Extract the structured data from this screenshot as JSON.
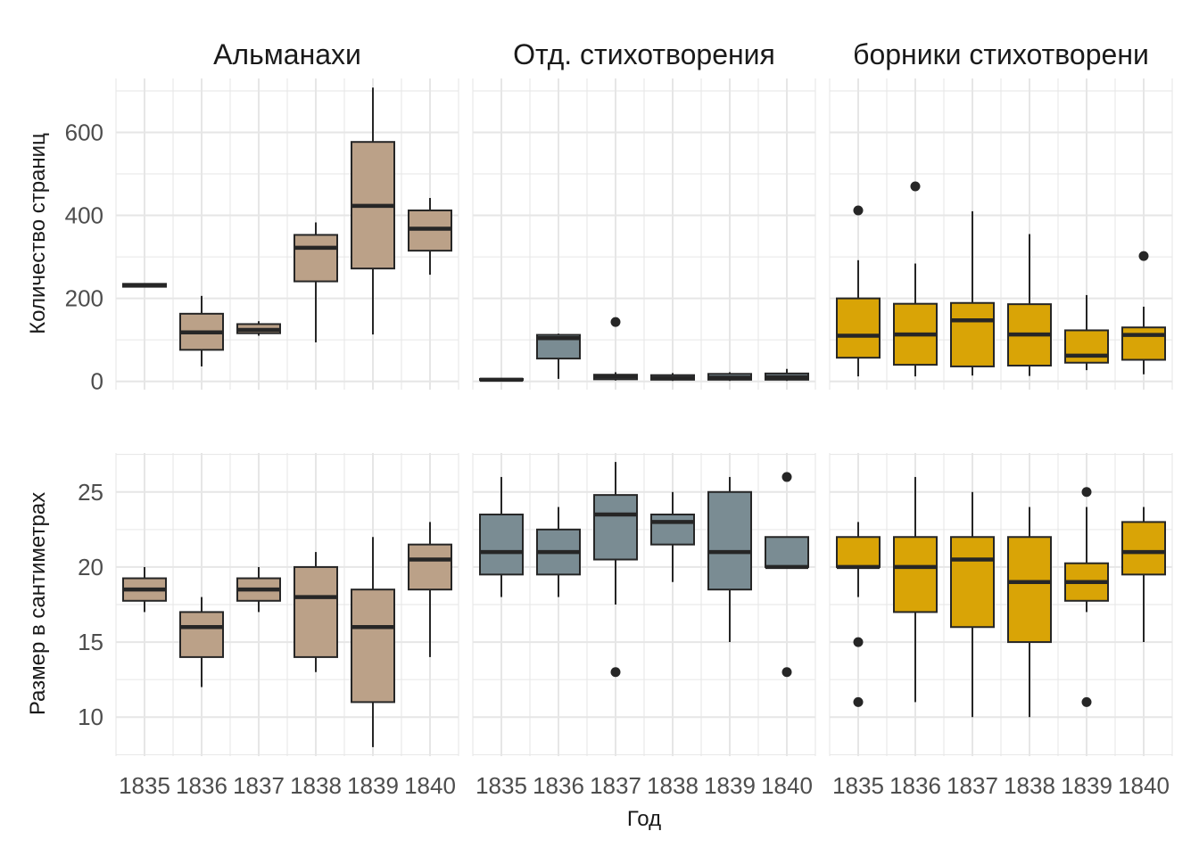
{
  "chart_data": {
    "type": "boxplot",
    "xlabel": "Год",
    "x_categories": [
      "1835",
      "1836",
      "1837",
      "1838",
      "1839",
      "1840"
    ],
    "facet_columns": [
      {
        "title": "Альманахи",
        "color": "#BBA188"
      },
      {
        "title": "Отд. стихотворения",
        "color": "#7A8C93"
      },
      {
        "title": "борники стихотворени",
        "color": "#D9A406"
      }
    ],
    "rows": [
      {
        "ylabel": "Количество страниц",
        "ylim": [
          -20,
          730
        ],
        "y_ticks": [
          0,
          200,
          400,
          600
        ],
        "panels": [
          [
            {
              "year": "1835",
              "min": 228,
              "q1": 228,
              "median": 232,
              "q3": 235,
              "max": 235,
              "outliers": []
            },
            {
              "year": "1836",
              "min": 36,
              "q1": 76,
              "median": 118,
              "q3": 163,
              "max": 206,
              "outliers": []
            },
            {
              "year": "1837",
              "min": 110,
              "q1": 116,
              "median": 124,
              "q3": 138,
              "max": 145,
              "outliers": []
            },
            {
              "year": "1838",
              "min": 94,
              "q1": 241,
              "median": 322,
              "q3": 353,
              "max": 383,
              "outliers": []
            },
            {
              "year": "1839",
              "min": 113,
              "q1": 272,
              "median": 423,
              "q3": 577,
              "max": 708,
              "outliers": []
            },
            {
              "year": "1840",
              "min": 257,
              "q1": 315,
              "median": 368,
              "q3": 412,
              "max": 442,
              "outliers": []
            }
          ],
          [
            {
              "year": "1835",
              "min": 2,
              "q1": 3,
              "median": 4,
              "q3": 6,
              "max": 7,
              "outliers": []
            },
            {
              "year": "1836",
              "min": 6,
              "q1": 55,
              "median": 104,
              "q3": 112,
              "max": 115,
              "outliers": []
            },
            {
              "year": "1837",
              "min": 2,
              "q1": 5,
              "median": 12,
              "q3": 16,
              "max": 22,
              "outliers": [
                143
              ]
            },
            {
              "year": "1838",
              "min": 1,
              "q1": 4,
              "median": 8,
              "q3": 15,
              "max": 20,
              "outliers": []
            },
            {
              "year": "1839",
              "min": 1,
              "q1": 4,
              "median": 9,
              "q3": 18,
              "max": 22,
              "outliers": []
            },
            {
              "year": "1840",
              "min": 1,
              "q1": 4,
              "median": 10,
              "q3": 19,
              "max": 30,
              "outliers": []
            }
          ],
          [
            {
              "year": "1835",
              "min": 12,
              "q1": 57,
              "median": 110,
              "q3": 200,
              "max": 292,
              "outliers": [
                412
              ]
            },
            {
              "year": "1836",
              "min": 12,
              "q1": 40,
              "median": 113,
              "q3": 187,
              "max": 284,
              "outliers": [
                470
              ]
            },
            {
              "year": "1837",
              "min": 14,
              "q1": 36,
              "median": 147,
              "q3": 189,
              "max": 410,
              "outliers": []
            },
            {
              "year": "1838",
              "min": 13,
              "q1": 38,
              "median": 113,
              "q3": 186,
              "max": 355,
              "outliers": []
            },
            {
              "year": "1839",
              "min": 27,
              "q1": 45,
              "median": 62,
              "q3": 123,
              "max": 208,
              "outliers": []
            },
            {
              "year": "1840",
              "min": 17,
              "q1": 52,
              "median": 112,
              "q3": 130,
              "max": 180,
              "outliers": [
                302
              ]
            }
          ]
        ]
      },
      {
        "ylabel": "Размер в сантиметрах",
        "ylim": [
          7.4,
          27.6
        ],
        "y_ticks": [
          10,
          15,
          20,
          25
        ],
        "panels": [
          [
            {
              "year": "1835",
              "min": 17,
              "q1": 17.75,
              "median": 18.5,
              "q3": 19.25,
              "max": 20,
              "outliers": []
            },
            {
              "year": "1836",
              "min": 12,
              "q1": 14,
              "median": 16,
              "q3": 17,
              "max": 18,
              "outliers": []
            },
            {
              "year": "1837",
              "min": 17,
              "q1": 17.75,
              "median": 18.5,
              "q3": 19.25,
              "max": 20,
              "outliers": []
            },
            {
              "year": "1838",
              "min": 13,
              "q1": 14,
              "median": 18,
              "q3": 20,
              "max": 21,
              "outliers": []
            },
            {
              "year": "1839",
              "min": 8,
              "q1": 11,
              "median": 16,
              "q3": 18.5,
              "max": 22,
              "outliers": []
            },
            {
              "year": "1840",
              "min": 14,
              "q1": 18.5,
              "median": 20.5,
              "q3": 21.5,
              "max": 23,
              "outliers": []
            }
          ],
          [
            {
              "year": "1835",
              "min": 18,
              "q1": 19.5,
              "median": 21,
              "q3": 23.5,
              "max": 26,
              "outliers": []
            },
            {
              "year": "1836",
              "min": 18,
              "q1": 19.5,
              "median": 21,
              "q3": 22.5,
              "max": 24,
              "outliers": []
            },
            {
              "year": "1837",
              "min": 17.5,
              "q1": 20.5,
              "median": 23.5,
              "q3": 24.8,
              "max": 27,
              "outliers": [
                13
              ]
            },
            {
              "year": "1838",
              "min": 19,
              "q1": 21.5,
              "median": 23,
              "q3": 23.5,
              "max": 25,
              "outliers": []
            },
            {
              "year": "1839",
              "min": 15,
              "q1": 18.5,
              "median": 21,
              "q3": 25,
              "max": 26,
              "outliers": []
            },
            {
              "year": "1840",
              "min": 20,
              "q1": 20,
              "median": 20,
              "q3": 22,
              "max": 22,
              "outliers": [
                26,
                13
              ]
            }
          ],
          [
            {
              "year": "1835",
              "min": 18,
              "q1": 20,
              "median": 20,
              "q3": 22,
              "max": 23,
              "outliers": [
                15,
                11
              ]
            },
            {
              "year": "1836",
              "min": 11,
              "q1": 17,
              "median": 20,
              "q3": 22,
              "max": 26,
              "outliers": []
            },
            {
              "year": "1837",
              "min": 10,
              "q1": 16,
              "median": 20.5,
              "q3": 22,
              "max": 25,
              "outliers": []
            },
            {
              "year": "1838",
              "min": 10,
              "q1": 15,
              "median": 19,
              "q3": 22,
              "max": 24,
              "outliers": []
            },
            {
              "year": "1839",
              "min": 17,
              "q1": 17.75,
              "median": 19,
              "q3": 20.25,
              "max": 24,
              "outliers": [
                25,
                11
              ]
            },
            {
              "year": "1840",
              "min": 15,
              "q1": 19.5,
              "median": 21,
              "q3": 23,
              "max": 24,
              "outliers": []
            }
          ]
        ]
      }
    ],
    "grid": true,
    "legend": "none"
  }
}
